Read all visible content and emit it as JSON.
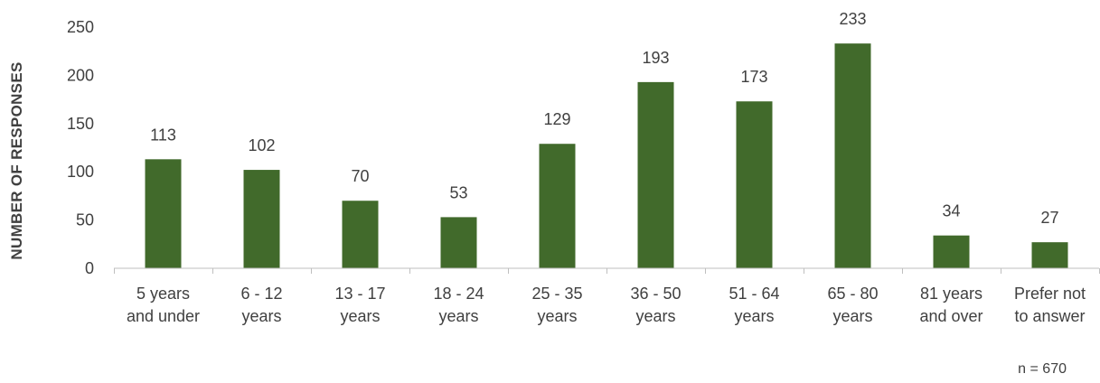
{
  "chart_data": {
    "type": "bar",
    "categories": [
      [
        "5 years",
        "and under"
      ],
      [
        "6 - 12",
        "years"
      ],
      [
        "13 - 17",
        "years"
      ],
      [
        "18 - 24",
        "years"
      ],
      [
        "25 - 35",
        "years"
      ],
      [
        "36 - 50",
        "years"
      ],
      [
        "51 - 64",
        "years"
      ],
      [
        "65 - 80",
        "years"
      ],
      [
        "81 years",
        "and over"
      ],
      [
        "Prefer not",
        "to answer"
      ]
    ],
    "values": [
      113,
      102,
      70,
      53,
      129,
      193,
      173,
      233,
      34,
      27
    ],
    "data_labels": [
      "113",
      "102",
      "70",
      "53",
      "129",
      "193",
      "173",
      "233",
      "34",
      "27"
    ],
    "ylabel": "NUMBER OF RESPONSES",
    "xlabel": "",
    "ylim": [
      0,
      250
    ],
    "yticks": [
      0,
      50,
      100,
      150,
      200,
      250
    ],
    "grid": false,
    "bar_color": "#416a2b",
    "axis_color": "#bfbfbf",
    "note": "n = 670"
  }
}
